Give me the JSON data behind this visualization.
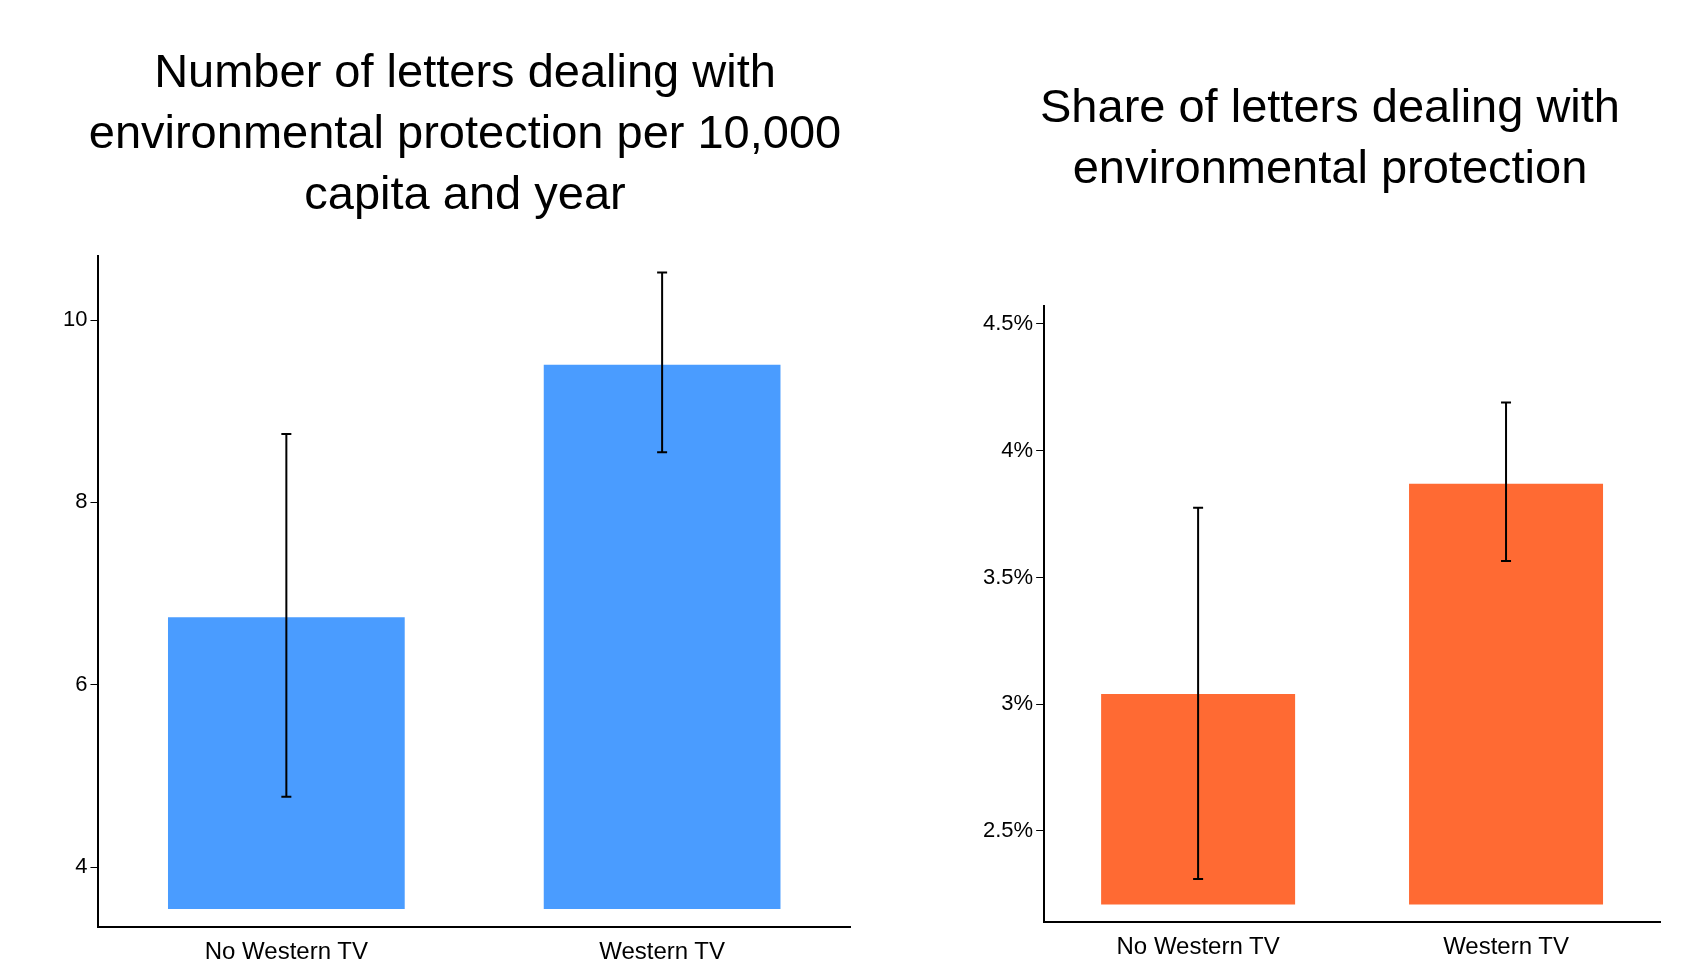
{
  "chart_data": [
    {
      "type": "bar",
      "title": "Number of letters dealing with environmental protection per 10,000 capita and year",
      "categories": [
        "No Western TV",
        "Western TV"
      ],
      "base": [
        3.54,
        3.54
      ],
      "values": [
        3.2,
        5.97
      ],
      "color": "#4a9cff",
      "errors": [
        [
          4.77,
          8.75
        ],
        [
          8.55,
          10.52
        ]
      ],
      "ylim": [
        3.34,
        10.7
      ],
      "yticks": [
        4,
        6,
        8,
        10
      ]
    },
    {
      "type": "bar",
      "title": "Share of letters dealing with environmental protection",
      "categories": [
        "No Western TV",
        "Western TV"
      ],
      "base": [
        2.21,
        2.21
      ],
      "values": [
        0.83,
        1.66
      ],
      "color": "#ff6a33",
      "errors": [
        [
          2.31,
          3.775
        ],
        [
          3.565,
          4.19
        ]
      ],
      "ylim": [
        2.14,
        4.57
      ],
      "yticks": [
        {
          "value": 2.5,
          "label": "2.5%"
        },
        {
          "value": 3,
          "label": "3%"
        },
        {
          "value": 3.5,
          "label": "3.5%"
        },
        {
          "value": 4,
          "label": "4%"
        },
        {
          "value": 4.5,
          "label": "4.5%"
        }
      ]
    }
  ]
}
